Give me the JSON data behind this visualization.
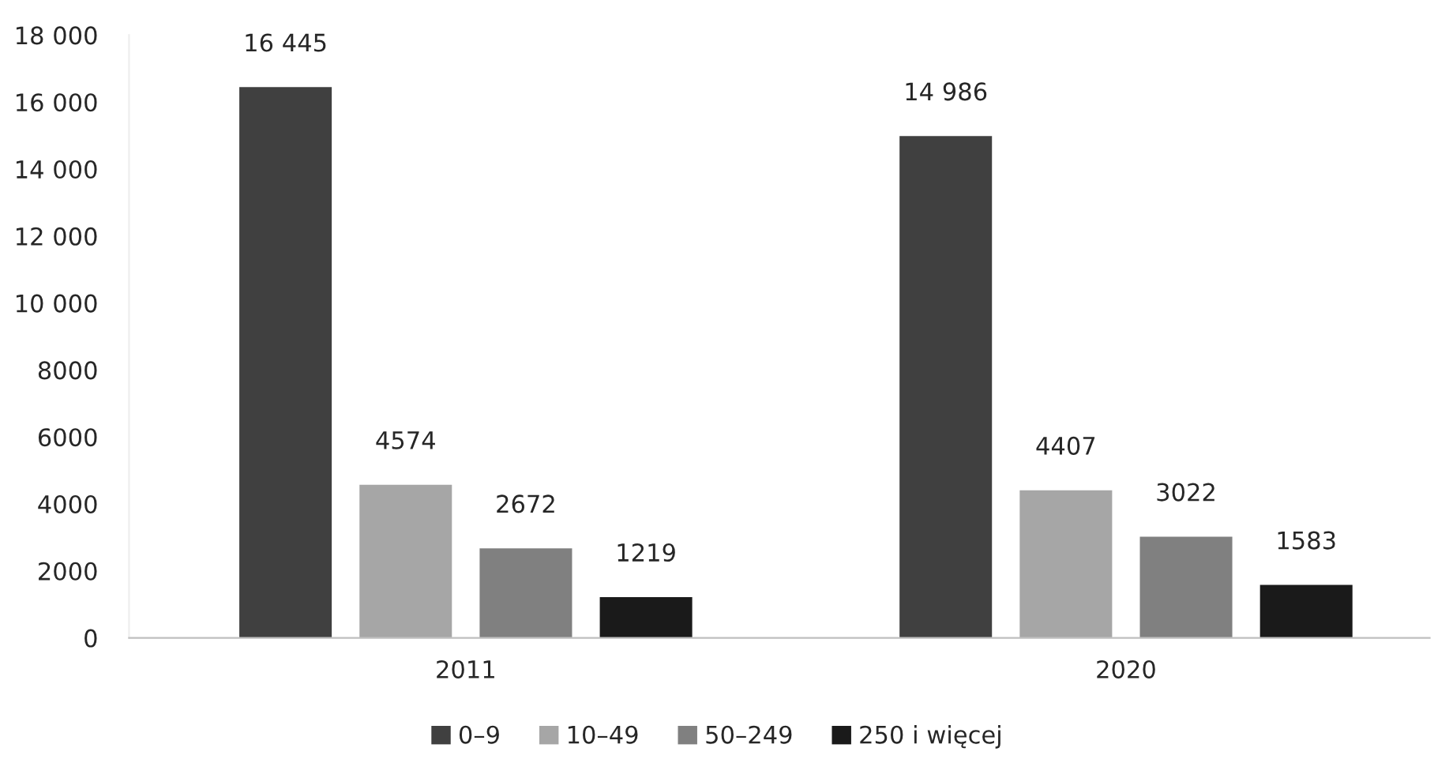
{
  "chart_data": {
    "type": "bar",
    "categories": [
      "2011",
      "2020"
    ],
    "series": [
      {
        "name": "0–9",
        "color": "#404040",
        "values": [
          16445,
          14986
        ],
        "value_labels": [
          "16 445",
          "14 986"
        ]
      },
      {
        "name": "10–49",
        "color": "#a6a6a6",
        "values": [
          4574,
          4407
        ],
        "value_labels": [
          "4574",
          "4407"
        ]
      },
      {
        "name": "50–249",
        "color": "#808080",
        "values": [
          2672,
          3022
        ],
        "value_labels": [
          "2672",
          "3022"
        ]
      },
      {
        "name": "250 i więcej",
        "color": "#1a1a1a",
        "values": [
          1219,
          1583
        ],
        "value_labels": [
          "1219",
          "1583"
        ]
      }
    ],
    "ylim": [
      0,
      18000
    ],
    "yticks": [
      0,
      2000,
      4000,
      6000,
      8000,
      {
        "value": 10000,
        "label": "10 000"
      },
      {
        "value": 12000,
        "label": "12 000"
      },
      {
        "value": 14000,
        "label": "14 000"
      },
      {
        "value": 16000,
        "label": "16 000"
      },
      {
        "value": 18000,
        "label": "18 000"
      }
    ],
    "grid": false,
    "legend": "bottom"
  }
}
